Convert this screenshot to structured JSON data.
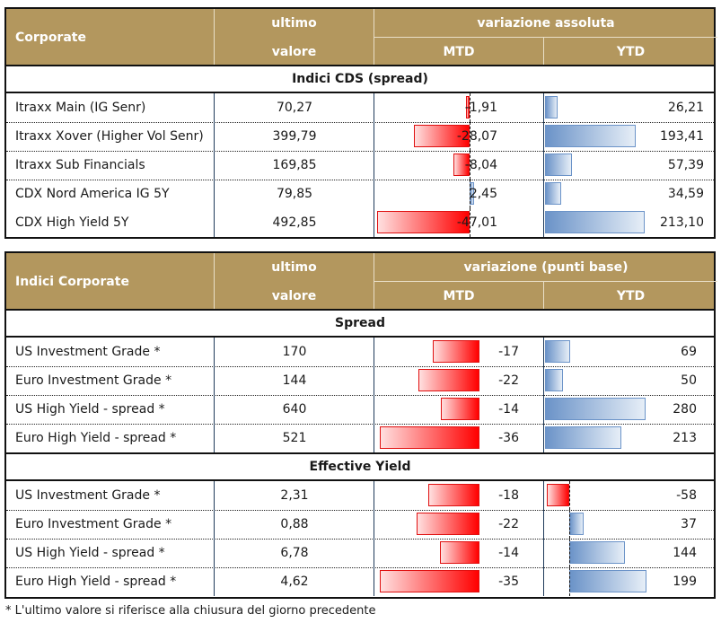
{
  "colors": {
    "header_bg": "#b3975e",
    "negative_bar": "#ff0000",
    "positive_bar": "#6b93c8"
  },
  "table1": {
    "header": {
      "title": "Corporate",
      "value_line1": "ultimo",
      "value_line2": "valore",
      "variation": "variazione assoluta",
      "mtd": "MTD",
      "ytd": "YTD"
    },
    "section": "Indici CDS (spread)",
    "rows": [
      {
        "label": "Itraxx Main (IG Senr)",
        "value": "70,27",
        "mtd": "-1,91",
        "ytd": "26,21",
        "mtd_num": -1.91,
        "ytd_num": 26.21
      },
      {
        "label": "Itraxx Xover (Higher Vol Senr)",
        "value": "399,79",
        "mtd": "-28,07",
        "ytd": "193,41",
        "mtd_num": -28.07,
        "ytd_num": 193.41
      },
      {
        "label": "Itraxx Sub Financials",
        "value": "169,85",
        "mtd": "-8,04",
        "ytd": "57,39",
        "mtd_num": -8.04,
        "ytd_num": 57.39
      },
      {
        "label": "CDX Nord America IG 5Y",
        "value": "79,85",
        "mtd": "2,45",
        "ytd": "34,59",
        "mtd_num": 2.45,
        "ytd_num": 34.59
      },
      {
        "label": "CDX High Yield 5Y",
        "value": "492,85",
        "mtd": "-47,01",
        "ytd": "213,10",
        "mtd_num": -47.01,
        "ytd_num": 213.1
      }
    ]
  },
  "table2": {
    "header": {
      "title": "Indici Corporate",
      "value_line1": "ultimo",
      "value_line2": "valore",
      "variation": "variazione (punti base)",
      "mtd": "MTD",
      "ytd": "YTD"
    },
    "sections": [
      {
        "title": "Spread",
        "rows": [
          {
            "label": "US Investment Grade *",
            "value": "170",
            "mtd": "-17",
            "ytd": "69",
            "mtd_num": -17,
            "ytd_num": 69
          },
          {
            "label": "Euro Investment Grade *",
            "value": "144",
            "mtd": "-22",
            "ytd": "50",
            "mtd_num": -22,
            "ytd_num": 50
          },
          {
            "label": "US High Yield  - spread *",
            "value": "640",
            "mtd": "-14",
            "ytd": "280",
            "mtd_num": -14,
            "ytd_num": 280
          },
          {
            "label": "Euro High Yield  - spread *",
            "value": "521",
            "mtd": "-36",
            "ytd": "213",
            "mtd_num": -36,
            "ytd_num": 213
          }
        ]
      },
      {
        "title": "Effective Yield",
        "rows": [
          {
            "label": "US Investment Grade *",
            "value": "2,31",
            "mtd": "-18",
            "ytd": "-58",
            "mtd_num": -18,
            "ytd_num": -58
          },
          {
            "label": "Euro Investment Grade *",
            "value": "0,88",
            "mtd": "-22",
            "ytd": "37",
            "mtd_num": -22,
            "ytd_num": 37
          },
          {
            "label": "US High Yield  - spread *",
            "value": "6,78",
            "mtd": "-14",
            "ytd": "144",
            "mtd_num": -14,
            "ytd_num": 144
          },
          {
            "label": "Euro High Yield  - spread *",
            "value": "4,62",
            "mtd": "-35",
            "ytd": "199",
            "mtd_num": -35,
            "ytd_num": 199
          }
        ]
      }
    ]
  },
  "footnote": "* L'ultimo valore si riferisce alla chiusura del giorno precedente"
}
